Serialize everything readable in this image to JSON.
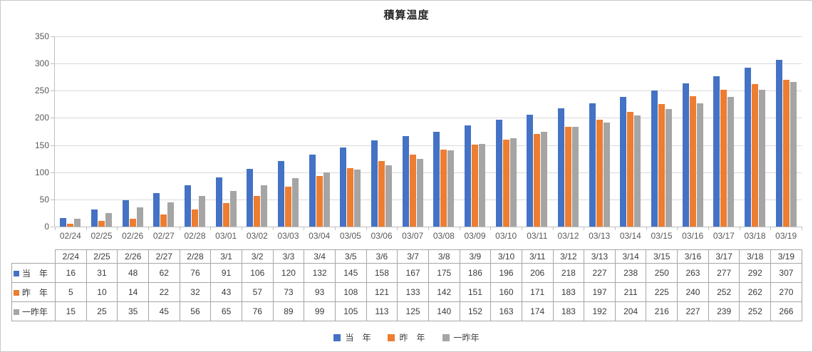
{
  "chart_data": {
    "type": "bar",
    "title": "積算温度",
    "categories": [
      "02/24",
      "02/25",
      "02/26",
      "02/27",
      "02/28",
      "03/01",
      "03/02",
      "03/03",
      "03/04",
      "03/05",
      "03/06",
      "03/07",
      "03/08",
      "03/09",
      "03/10",
      "03/11",
      "03/12",
      "03/13",
      "03/14",
      "03/15",
      "03/16",
      "03/17",
      "03/18",
      "03/19"
    ],
    "table_categories": [
      "2/24",
      "2/25",
      "2/26",
      "2/27",
      "2/28",
      "3/1",
      "3/2",
      "3/3",
      "3/4",
      "3/5",
      "3/6",
      "3/7",
      "3/8",
      "3/9",
      "3/10",
      "3/11",
      "3/12",
      "3/13",
      "3/14",
      "3/15",
      "3/16",
      "3/17",
      "3/18",
      "3/19"
    ],
    "series": [
      {
        "name": "当　年",
        "color": "#4472C4",
        "values": [
          16,
          31,
          48,
          62,
          76,
          91,
          106,
          120,
          132,
          145,
          158,
          167,
          175,
          186,
          196,
          206,
          218,
          227,
          238,
          250,
          263,
          277,
          292,
          307
        ]
      },
      {
        "name": "昨　年",
        "color": "#ED7D31",
        "values": [
          5,
          10,
          14,
          22,
          32,
          43,
          57,
          73,
          93,
          108,
          121,
          133,
          142,
          151,
          160,
          171,
          183,
          197,
          211,
          225,
          240,
          252,
          262,
          270
        ]
      },
      {
        "name": "一昨年",
        "color": "#A5A5A5",
        "values": [
          15,
          25,
          35,
          45,
          56,
          65,
          76,
          89,
          99,
          105,
          113,
          125,
          140,
          152,
          163,
          174,
          183,
          192,
          204,
          216,
          227,
          239,
          252,
          266
        ]
      }
    ],
    "ylim": [
      0,
      350
    ],
    "yticks": [
      0,
      50,
      100,
      150,
      200,
      250,
      300,
      350
    ],
    "grid": true,
    "legend_position": "bottom",
    "data_table_shown": true
  },
  "colors": {
    "series_blue": "#4472C4",
    "series_orange": "#ED7D31",
    "series_gray": "#A5A5A5",
    "gridline": "#D9D9D9",
    "axis": "#BFBFBF",
    "table_border": "#A6A6A6",
    "axis_text": "#595959"
  }
}
